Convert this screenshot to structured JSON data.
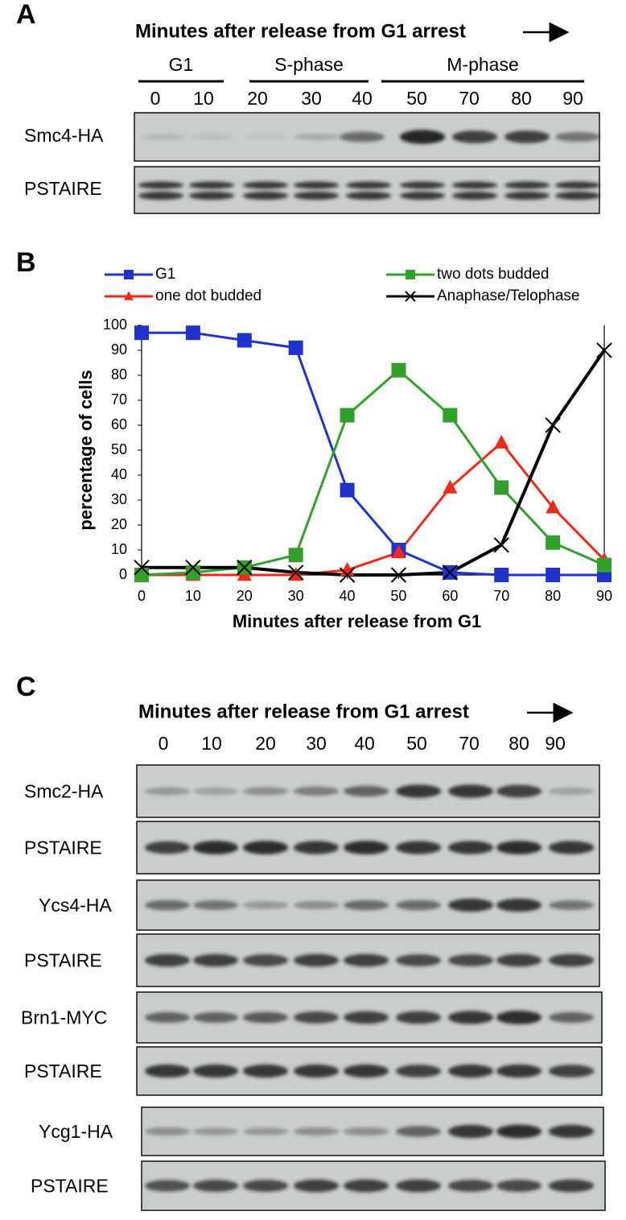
{
  "panel_a": {
    "letter": "A",
    "title": "Minutes after release from G1 arrest",
    "phases": [
      "G1",
      "S-phase",
      "M-phase"
    ],
    "lanes": [
      "0",
      "10",
      "20",
      "30",
      "40",
      "50",
      "70",
      "80",
      "90"
    ],
    "blots": [
      "Smc4-HA",
      "PSTAIRE"
    ]
  },
  "panel_b_letter": "B",
  "chart_data": {
    "type": "line",
    "x_label": "Minutes after release from G1",
    "y_label": "percentage of cells",
    "x": [
      0,
      10,
      20,
      30,
      40,
      50,
      60,
      70,
      80,
      90
    ],
    "xlim": [
      0,
      90
    ],
    "xticks": [
      0,
      10,
      20,
      30,
      40,
      50,
      60,
      70,
      80,
      90
    ],
    "ylim": [
      0,
      100
    ],
    "yticks": [
      0,
      10,
      20,
      30,
      40,
      50,
      60,
      70,
      80,
      90,
      100
    ],
    "series": [
      {
        "name": "G1",
        "color": "#2233cc",
        "marker": "square",
        "values": [
          97,
          97,
          94,
          91,
          34,
          10,
          1,
          0,
          0,
          0
        ]
      },
      {
        "name": "one dot budded",
        "color": "#ee2a1a",
        "marker": "triangle",
        "values": [
          0,
          0,
          0,
          0,
          2,
          9,
          35,
          53,
          27,
          6
        ]
      },
      {
        "name": "two dots budded",
        "color": "#33a02c",
        "marker": "square",
        "values": [
          0,
          1,
          3,
          8,
          64,
          82,
          64,
          35,
          13,
          4
        ]
      },
      {
        "name": "Anaphase/Telophase",
        "color": "#000000",
        "marker": "x",
        "values": [
          3,
          3,
          3,
          1,
          0,
          0,
          1,
          12,
          60,
          90
        ]
      }
    ]
  },
  "panel_c": {
    "letter": "C",
    "title": "Minutes after release from G1 arrest",
    "lanes": [
      "0",
      "10",
      "20",
      "30",
      "40",
      "50",
      "70",
      "80",
      "90"
    ],
    "blots": [
      "Smc2-HA",
      "PSTAIRE",
      "Ycs4-HA",
      "PSTAIRE",
      "Brn1-MYC",
      "PSTAIRE",
      "Ycg1-HA",
      "PSTAIRE"
    ]
  }
}
